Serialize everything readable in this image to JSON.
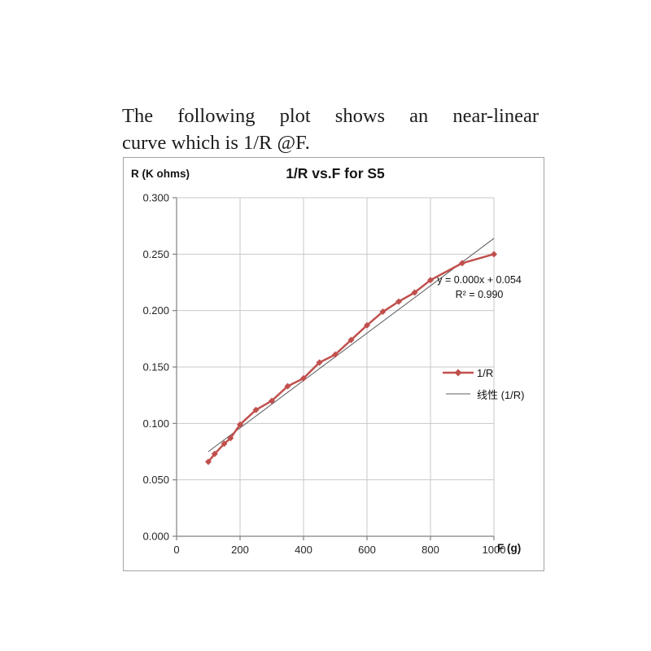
{
  "document": {
    "line1": "The following plot shows an near-linear",
    "line2": "curve which is 1/R @F."
  },
  "chart_data": {
    "type": "line",
    "title": "1/R vs.F for S5",
    "xlabel": "F (g)",
    "ylabel": "R (K ohms)",
    "xlim": [
      0,
      1000
    ],
    "ylim": [
      0,
      0.3
    ],
    "grid": true,
    "legend_position": "right-inside",
    "x_ticks": [
      {
        "value": 0,
        "label": "0"
      },
      {
        "value": 200,
        "label": "200"
      },
      {
        "value": 400,
        "label": "400"
      },
      {
        "value": 600,
        "label": "600"
      },
      {
        "value": 800,
        "label": "800"
      },
      {
        "value": 1000,
        "label": "1000"
      }
    ],
    "y_ticks": [
      {
        "value": 0.0,
        "label": "0.000"
      },
      {
        "value": 0.05,
        "label": "0.050"
      },
      {
        "value": 0.1,
        "label": "0.100"
      },
      {
        "value": 0.15,
        "label": "0.150"
      },
      {
        "value": 0.2,
        "label": "0.200"
      },
      {
        "value": 0.25,
        "label": "0.250"
      },
      {
        "value": 0.3,
        "label": "0.300"
      }
    ],
    "series": [
      {
        "name": "1/R",
        "color": "#C0504D",
        "marker": "diamond",
        "x": [
          100,
          120,
          150,
          170,
          200,
          250,
          300,
          350,
          400,
          450,
          500,
          550,
          600,
          650,
          700,
          750,
          800,
          900,
          1000
        ],
        "y": [
          0.066,
          0.073,
          0.082,
          0.087,
          0.099,
          0.112,
          0.12,
          0.133,
          0.14,
          0.154,
          0.161,
          0.174,
          0.187,
          0.199,
          0.208,
          0.216,
          0.227,
          0.242,
          0.25
        ]
      },
      {
        "name": "线性 (1/R)",
        "type": "trendline",
        "color": "#595959",
        "x": [
          100,
          1000
        ],
        "y": [
          0.075,
          0.264
        ]
      }
    ],
    "annotation": {
      "line1": "y = 0.000x + 0.054",
      "line2": "R² = 0.990"
    },
    "colors": {
      "grid": "#c9c9c9",
      "axis": "#808080",
      "tick_text": "#262626",
      "chart_border": "#a3a3a3"
    }
  }
}
